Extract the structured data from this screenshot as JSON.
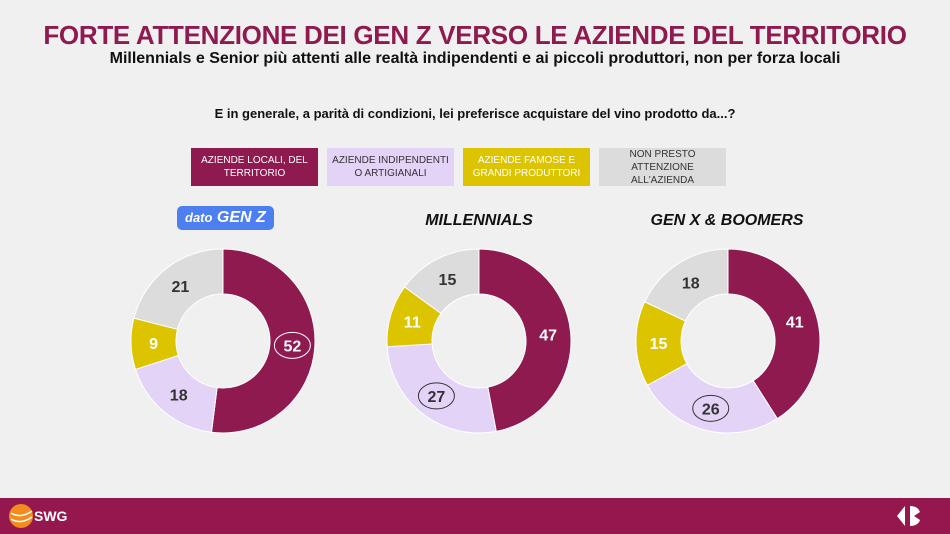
{
  "header": {
    "title": "FORTE ATTENZIONE DEI GEN Z VERSO LE AZIENDE DEL TERRITORIO",
    "subtitle": "Millennials e Senior più attenti alle realtà indipendenti e ai piccoli produttori, non per forza locali"
  },
  "footer": {
    "brand": "SWG"
  },
  "chart_data": {
    "type": "pie",
    "title": "E in generale, a parità di condizioni, lei preferisce acquistare del vino prodotto da...?",
    "highlight_label_prefix": "dato",
    "categories": [
      "AZIENDE LOCALI, DEL TERRITORIO",
      "AZIENDE INDIPENDENTI O ARTIGIANALI",
      "AZIENDE FAMOSE E GRANDI PRODUTTORI",
      "NON PRESTO ATTENZIONE ALL'AZIENDA"
    ],
    "colors": [
      "#8e1a4f",
      "#e2d3f7",
      "#dcc400",
      "#dcdcdc"
    ],
    "text_colors": [
      "#ffffff",
      "#333333",
      "#ffffff",
      "#333333"
    ],
    "series": [
      {
        "name": "GEN Z",
        "values": [
          52,
          18,
          9,
          21
        ],
        "circled": [
          0
        ]
      },
      {
        "name": "MILLENNIALS",
        "values": [
          47,
          27,
          11,
          15
        ],
        "circled": [
          1
        ]
      },
      {
        "name": "GEN X & BOOMERS",
        "values": [
          41,
          26,
          15,
          18
        ],
        "circled": [
          1
        ]
      }
    ]
  }
}
